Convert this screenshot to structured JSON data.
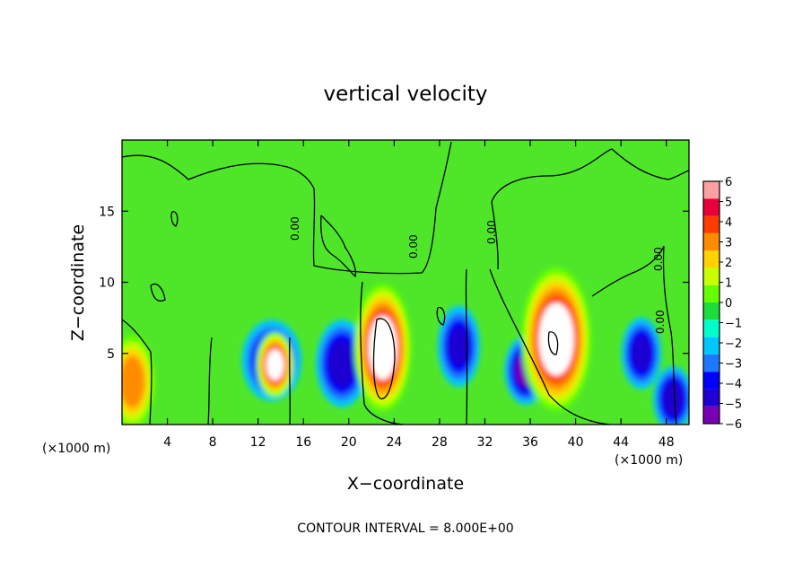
{
  "chart_data": {
    "type": "heatmap",
    "title": "vertical velocity",
    "xlabel": "X−coordinate",
    "ylabel": "Z−coordinate",
    "x_unit": "(×1000 m)",
    "z_unit": "(×1000 m)",
    "xlim": [
      0,
      50
    ],
    "ylim": [
      0,
      20
    ],
    "x_ticks": [
      "4",
      "8",
      "12",
      "16",
      "20",
      "24",
      "28",
      "32",
      "36",
      "40",
      "44",
      "48"
    ],
    "y_ticks": [
      "5",
      "10",
      "15"
    ],
    "contour_label": "0.00",
    "footnote": "CONTOUR INTERVAL = 8.000E+00",
    "colorbar": {
      "labels": [
        "6",
        "5",
        "4",
        "3",
        "2",
        "1",
        "0",
        "−1",
        "−2",
        "−3",
        "−4",
        "−5",
        "−6"
      ],
      "range": [
        -6,
        6
      ],
      "over_color": "#ffffff",
      "colors": [
        "#7a00b4",
        "#1e00d2",
        "#0000ff",
        "#1e78ff",
        "#00c8ff",
        "#00ffc8",
        "#1edc3c",
        "#64ff00",
        "#c8ff00",
        "#ffd200",
        "#ff8c00",
        "#ff3c00",
        "#e6003c",
        "#ffa0a0"
      ]
    },
    "features": [
      {
        "x": 0.9,
        "z": 3.0,
        "w": 4.5,
        "note": "updraft"
      },
      {
        "x": 13.2,
        "z": 4.5,
        "w": -4.2,
        "note": "downdraft"
      },
      {
        "x": 13.5,
        "z": 4.2,
        "w": 6.5,
        "note": "core"
      },
      {
        "x": 19.4,
        "z": 4.3,
        "w": -4.5,
        "note": "downdraft"
      },
      {
        "x": 23.0,
        "z": 5.4,
        "w": 6.8,
        "note": "updraft"
      },
      {
        "x": 29.7,
        "z": 5.5,
        "w": -4.0,
        "note": "downdraft"
      },
      {
        "x": 35.6,
        "z": 3.8,
        "w": -5.0,
        "note": "downdraft"
      },
      {
        "x": 38.3,
        "z": 6.0,
        "w": 6.9,
        "note": "updraft"
      },
      {
        "x": 45.8,
        "z": 5.0,
        "w": -4.2,
        "note": "downdraft"
      },
      {
        "x": 48.6,
        "z": 1.8,
        "w": -4.5,
        "note": "downdraft"
      }
    ]
  }
}
